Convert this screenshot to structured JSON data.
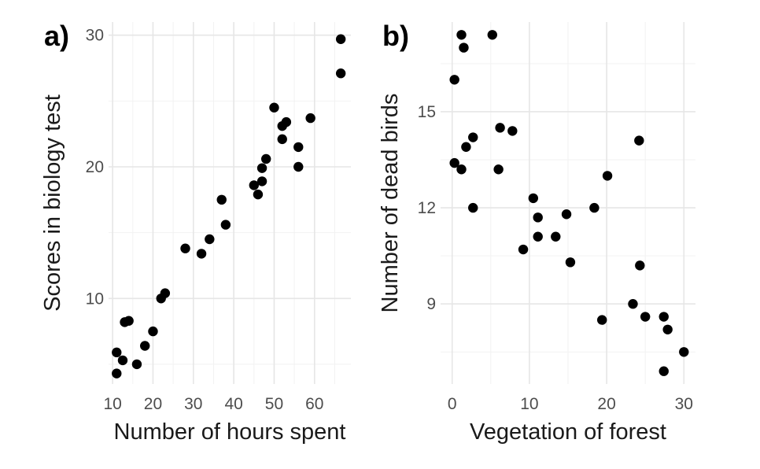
{
  "chart_data": [
    {
      "type": "scatter",
      "panel_tag": "a)",
      "xlabel": "Number of hours spent",
      "ylabel": "Scores in biology test",
      "xlim": [
        9,
        69
      ],
      "ylim": [
        3.5,
        31
      ],
      "xticks": [
        10,
        20,
        30,
        40,
        50,
        60
      ],
      "yticks": [
        10,
        20,
        30
      ],
      "grid": true,
      "point_color": "#000000",
      "points": [
        {
          "x": 11,
          "y": 4.3
        },
        {
          "x": 11,
          "y": 5.9
        },
        {
          "x": 12.5,
          "y": 5.3
        },
        {
          "x": 13,
          "y": 8.2
        },
        {
          "x": 14,
          "y": 8.3
        },
        {
          "x": 16,
          "y": 5.0
        },
        {
          "x": 18,
          "y": 6.4
        },
        {
          "x": 20,
          "y": 7.5
        },
        {
          "x": 22,
          "y": 10.0
        },
        {
          "x": 23,
          "y": 10.4
        },
        {
          "x": 28,
          "y": 13.8
        },
        {
          "x": 32,
          "y": 13.4
        },
        {
          "x": 34,
          "y": 14.5
        },
        {
          "x": 37,
          "y": 17.5
        },
        {
          "x": 38,
          "y": 15.6
        },
        {
          "x": 45,
          "y": 18.6
        },
        {
          "x": 46,
          "y": 17.9
        },
        {
          "x": 47,
          "y": 18.9
        },
        {
          "x": 47,
          "y": 19.9
        },
        {
          "x": 48,
          "y": 20.6
        },
        {
          "x": 50,
          "y": 24.5
        },
        {
          "x": 52,
          "y": 22.1
        },
        {
          "x": 52,
          "y": 23.1
        },
        {
          "x": 53,
          "y": 23.4
        },
        {
          "x": 56,
          "y": 20.0
        },
        {
          "x": 56,
          "y": 21.5
        },
        {
          "x": 59,
          "y": 23.7
        },
        {
          "x": 66.5,
          "y": 29.7
        },
        {
          "x": 66.5,
          "y": 27.1
        }
      ]
    },
    {
      "type": "scatter",
      "panel_tag": "b)",
      "xlabel": "Vegetation of forest",
      "ylabel": "Number of dead birds",
      "xlim": [
        -1.5,
        31.5
      ],
      "ylim": [
        6.5,
        17.8
      ],
      "xticks": [
        0,
        10,
        20,
        30
      ],
      "yticks": [
        9,
        12,
        15
      ],
      "grid": true,
      "point_color": "#000000",
      "points": [
        {
          "x": 0.3,
          "y": 16.0
        },
        {
          "x": 0.3,
          "y": 13.4
        },
        {
          "x": 1.2,
          "y": 17.4
        },
        {
          "x": 1.5,
          "y": 17.0
        },
        {
          "x": 1.2,
          "y": 13.2
        },
        {
          "x": 1.8,
          "y": 13.9
        },
        {
          "x": 2.7,
          "y": 14.2
        },
        {
          "x": 2.7,
          "y": 12.0
        },
        {
          "x": 5.2,
          "y": 17.4
        },
        {
          "x": 6.2,
          "y": 14.5
        },
        {
          "x": 6.0,
          "y": 13.2
        },
        {
          "x": 7.8,
          "y": 14.4
        },
        {
          "x": 9.2,
          "y": 10.7
        },
        {
          "x": 10.5,
          "y": 12.3
        },
        {
          "x": 11.1,
          "y": 11.1
        },
        {
          "x": 11.1,
          "y": 11.7
        },
        {
          "x": 13.4,
          "y": 11.1
        },
        {
          "x": 14.8,
          "y": 11.8
        },
        {
          "x": 15.3,
          "y": 10.3
        },
        {
          "x": 18.4,
          "y": 12.0
        },
        {
          "x": 19.4,
          "y": 8.5
        },
        {
          "x": 20.1,
          "y": 13.0
        },
        {
          "x": 23.4,
          "y": 9.0
        },
        {
          "x": 24.2,
          "y": 14.1
        },
        {
          "x": 24.3,
          "y": 10.2
        },
        {
          "x": 25.0,
          "y": 8.6
        },
        {
          "x": 27.4,
          "y": 8.6
        },
        {
          "x": 27.9,
          "y": 8.2
        },
        {
          "x": 27.4,
          "y": 6.9
        },
        {
          "x": 30.0,
          "y": 7.5
        }
      ]
    }
  ]
}
